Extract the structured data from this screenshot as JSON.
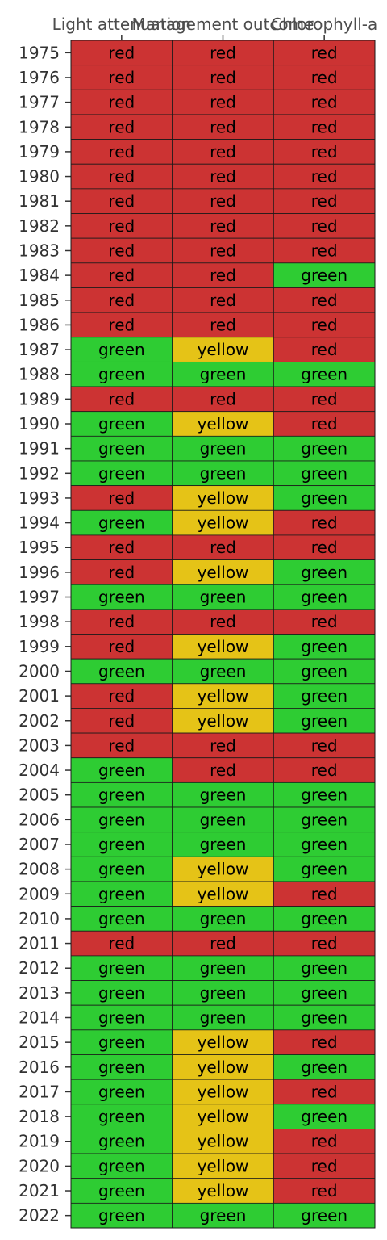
{
  "colors": {
    "red": "#cc3333",
    "yellow": "#e5c317",
    "green": "#2ecc33",
    "border": "#1a1a1a",
    "tick": "#333333"
  },
  "chart_data": {
    "type": "heatmap",
    "title": "",
    "xlabel": "",
    "ylabel": "",
    "columns": [
      "Light attenuation",
      "Management outcome",
      "Chlorophyll-a"
    ],
    "rows": [
      "1975",
      "1976",
      "1977",
      "1978",
      "1979",
      "1980",
      "1981",
      "1982",
      "1983",
      "1984",
      "1985",
      "1986",
      "1987",
      "1988",
      "1989",
      "1990",
      "1991",
      "1992",
      "1993",
      "1994",
      "1995",
      "1996",
      "1997",
      "1998",
      "1999",
      "2000",
      "2001",
      "2002",
      "2003",
      "2004",
      "2005",
      "2006",
      "2007",
      "2008",
      "2009",
      "2010",
      "2011",
      "2012",
      "2013",
      "2014",
      "2015",
      "2016",
      "2017",
      "2018",
      "2019",
      "2020",
      "2021",
      "2022"
    ],
    "values": [
      [
        "red",
        "red",
        "red"
      ],
      [
        "red",
        "red",
        "red"
      ],
      [
        "red",
        "red",
        "red"
      ],
      [
        "red",
        "red",
        "red"
      ],
      [
        "red",
        "red",
        "red"
      ],
      [
        "red",
        "red",
        "red"
      ],
      [
        "red",
        "red",
        "red"
      ],
      [
        "red",
        "red",
        "red"
      ],
      [
        "red",
        "red",
        "red"
      ],
      [
        "red",
        "red",
        "green"
      ],
      [
        "red",
        "red",
        "red"
      ],
      [
        "red",
        "red",
        "red"
      ],
      [
        "green",
        "yellow",
        "red"
      ],
      [
        "green",
        "green",
        "green"
      ],
      [
        "red",
        "red",
        "red"
      ],
      [
        "green",
        "yellow",
        "red"
      ],
      [
        "green",
        "green",
        "green"
      ],
      [
        "green",
        "green",
        "green"
      ],
      [
        "red",
        "yellow",
        "green"
      ],
      [
        "green",
        "yellow",
        "red"
      ],
      [
        "red",
        "red",
        "red"
      ],
      [
        "red",
        "yellow",
        "green"
      ],
      [
        "green",
        "green",
        "green"
      ],
      [
        "red",
        "red",
        "red"
      ],
      [
        "red",
        "yellow",
        "green"
      ],
      [
        "green",
        "green",
        "green"
      ],
      [
        "red",
        "yellow",
        "green"
      ],
      [
        "red",
        "yellow",
        "green"
      ],
      [
        "red",
        "red",
        "red"
      ],
      [
        "green",
        "red",
        "red"
      ],
      [
        "green",
        "green",
        "green"
      ],
      [
        "green",
        "green",
        "green"
      ],
      [
        "green",
        "green",
        "green"
      ],
      [
        "green",
        "yellow",
        "green"
      ],
      [
        "green",
        "yellow",
        "red"
      ],
      [
        "green",
        "green",
        "green"
      ],
      [
        "red",
        "red",
        "red"
      ],
      [
        "green",
        "green",
        "green"
      ],
      [
        "green",
        "green",
        "green"
      ],
      [
        "green",
        "green",
        "green"
      ],
      [
        "green",
        "yellow",
        "red"
      ],
      [
        "green",
        "yellow",
        "green"
      ],
      [
        "green",
        "yellow",
        "red"
      ],
      [
        "green",
        "yellow",
        "green"
      ],
      [
        "green",
        "yellow",
        "red"
      ],
      [
        "green",
        "yellow",
        "red"
      ],
      [
        "green",
        "yellow",
        "red"
      ],
      [
        "green",
        "green",
        "green"
      ]
    ]
  }
}
